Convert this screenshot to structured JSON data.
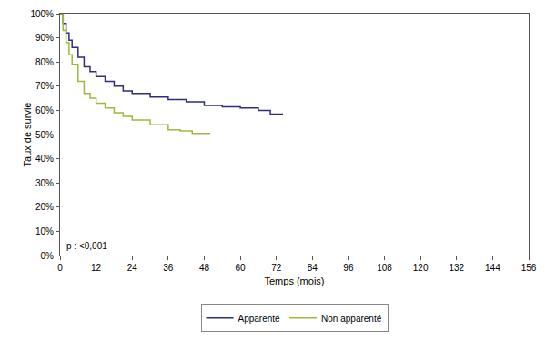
{
  "chart_data": {
    "type": "line",
    "line_style": "step",
    "x_label": "Temps (mois)",
    "y_label": "Taux de survie",
    "annotation": "p : <0,001",
    "legend": "bottom",
    "grid": false,
    "xlim": [
      0,
      156
    ],
    "xticks": [
      0,
      12,
      24,
      36,
      48,
      60,
      72,
      84,
      96,
      108,
      120,
      132,
      144,
      156
    ],
    "ylim": [
      0,
      100
    ],
    "yticks": [
      {
        "value": 0,
        "label": "0%"
      },
      {
        "value": 10,
        "label": "10%"
      },
      {
        "value": 20,
        "label": "20%"
      },
      {
        "value": 30,
        "label": "30%"
      },
      {
        "value": 40,
        "label": "40%"
      },
      {
        "value": 50,
        "label": "50%"
      },
      {
        "value": 60,
        "label": "60%"
      },
      {
        "value": 70,
        "label": "70%"
      },
      {
        "value": 80,
        "label": "80%"
      },
      {
        "value": 90,
        "label": "90%"
      },
      {
        "value": 100,
        "label": "100%"
      }
    ],
    "series": [
      {
        "name": "Apparenté",
        "color": "#2e2d7f",
        "x": [
          0,
          1,
          2,
          3,
          4,
          6,
          8,
          10,
          12,
          15,
          18,
          21,
          24,
          30,
          36,
          42,
          48,
          54,
          60,
          66,
          70,
          74
        ],
        "values": [
          100,
          96,
          92,
          89,
          86,
          82,
          78,
          76,
          74,
          72,
          70,
          68,
          67,
          65.5,
          64.5,
          63.5,
          62,
          61.5,
          61,
          60,
          58.5,
          58
        ]
      },
      {
        "name": "Non apparenté",
        "color": "#9bba3c",
        "x": [
          0,
          1,
          2,
          3,
          4,
          6,
          8,
          10,
          12,
          15,
          18,
          21,
          24,
          30,
          36,
          40,
          44,
          50
        ],
        "values": [
          100,
          93,
          88,
          83,
          79,
          72,
          67,
          65,
          63,
          61,
          59,
          57.5,
          56,
          54,
          52,
          51.5,
          50.5,
          50.5
        ]
      }
    ]
  }
}
